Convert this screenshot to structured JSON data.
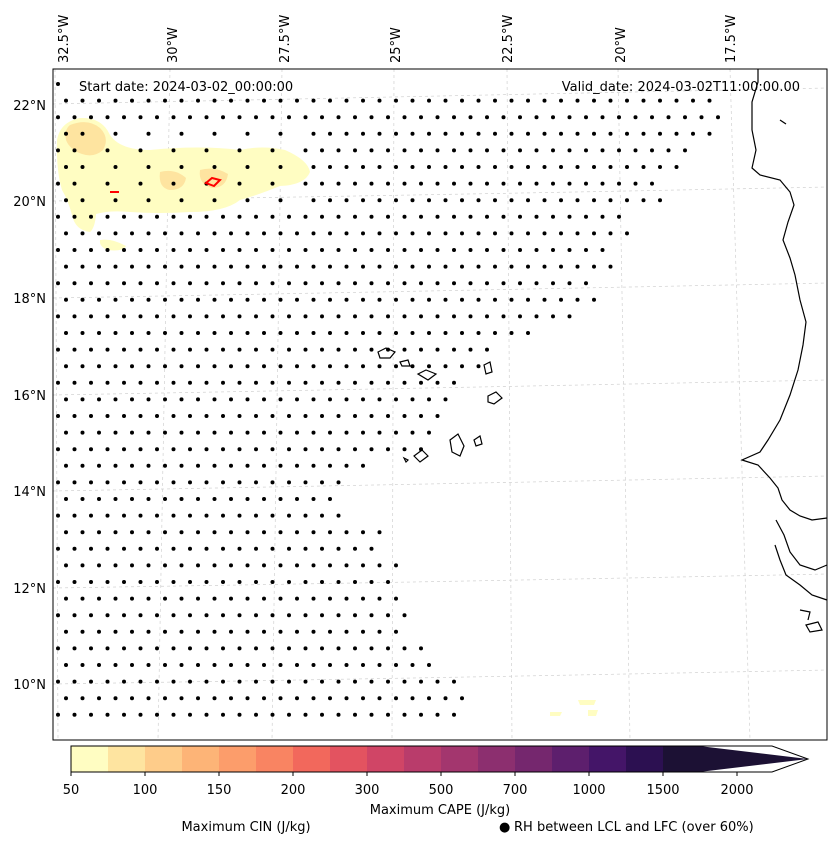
{
  "map": {
    "start_label": "Start date: 2024-03-02_00:00:00",
    "valid_label": "Valid_date: 2024-03-02T11:00:00.00",
    "lon_labels": [
      "32.5°W",
      "30°W",
      "27.5°W",
      "25°W",
      "22.5°W",
      "20°W",
      "17.5°W"
    ],
    "lat_labels": [
      "22°N",
      "20°N",
      "18°N",
      "16°N",
      "14°N",
      "12°N",
      "10°N"
    ]
  },
  "colorbar": {
    "title": "Maximum CAPE (J/kg)",
    "ticks": [
      "50",
      "100",
      "150",
      "200",
      "300",
      "500",
      "700",
      "1000",
      "1500",
      "2000"
    ],
    "colors": [
      "#fffdc2",
      "#fee4a0",
      "#fecc8a",
      "#fdb477",
      "#fc9d6b",
      "#f98462",
      "#f2685c",
      "#e35360",
      "#d04566",
      "#b93c6b",
      "#a3366e",
      "#8c2f6f",
      "#75276e",
      "#5d1f6d",
      "#441568",
      "#2c1051",
      "#1c1134"
    ]
  },
  "legend": {
    "cin_label": "Maximum CIN (J/kg)",
    "cin_color": "#ff0000",
    "rh_symbol": "●",
    "rh_label": "RH between LCL and LFC (over 60%)"
  }
}
